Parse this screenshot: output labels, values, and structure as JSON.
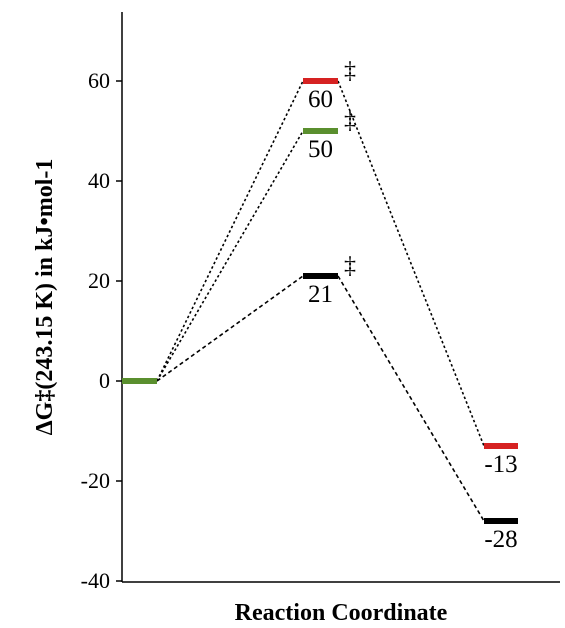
{
  "chart_data": {
    "type": "line",
    "ylabel": "ΔG‡(243.15 K) in kJ•mol-1",
    "xlabel": "Reaction Coordinate",
    "ylim": [
      -40,
      75
    ],
    "yticks": [
      -40,
      -20,
      0,
      20,
      40,
      60
    ],
    "grid": false,
    "levels": [
      {
        "id": "start",
        "stage": 0,
        "value": 0,
        "color": "#5a8f2e",
        "label": "",
        "ts_mark": ""
      },
      {
        "id": "ts-red",
        "stage": 1,
        "value": 60,
        "color": "#d62222",
        "label": "60",
        "ts_mark": "‡"
      },
      {
        "id": "ts-green",
        "stage": 1,
        "value": 50,
        "color": "#5a8f2e",
        "label": "50",
        "ts_mark": "‡"
      },
      {
        "id": "ts-black",
        "stage": 1,
        "value": 21,
        "color": "#000000",
        "label": "21",
        "ts_mark": "‡"
      },
      {
        "id": "prod-red",
        "stage": 2,
        "value": -13,
        "color": "#d62222",
        "label": "-13",
        "ts_mark": ""
      },
      {
        "id": "prod-black",
        "stage": 2,
        "value": -28,
        "color": "#000000",
        "label": "-28",
        "ts_mark": ""
      }
    ],
    "connections": [
      {
        "from": "start",
        "to": "ts-red",
        "dash": "dotted"
      },
      {
        "from": "start",
        "to": "ts-green",
        "dash": "dotted"
      },
      {
        "from": "start",
        "to": "ts-black",
        "dash": "dashed"
      },
      {
        "from": "ts-red",
        "to": "prod-red",
        "dash": "dotted"
      },
      {
        "from": "ts-black",
        "to": "prod-black",
        "dash": "dashed"
      }
    ]
  }
}
